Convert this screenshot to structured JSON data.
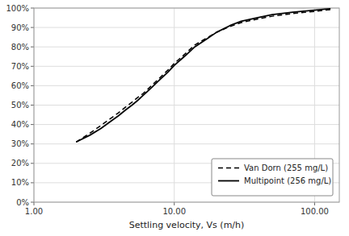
{
  "chart_data": {
    "type": "line",
    "xlabel": "Settling velocity, Vs (m/h)",
    "x": [
      2.0,
      2.5,
      3.0,
      3.5,
      4.0,
      4.5,
      5.0,
      5.5,
      6.0,
      7.0,
      8.0,
      9.0,
      10.0,
      12.0,
      14.0,
      17.0,
      20.0,
      25.0,
      30.0,
      40.0,
      50.0,
      70.0,
      100.0,
      130.0
    ],
    "series": [
      {
        "name": "Van Dorn (255 mg/L)",
        "color": "#000000",
        "line_style": "dashed",
        "values": [
          0.31,
          0.355,
          0.395,
          0.43,
          0.46,
          0.49,
          0.515,
          0.54,
          0.56,
          0.605,
          0.645,
          0.68,
          0.715,
          0.765,
          0.81,
          0.845,
          0.875,
          0.905,
          0.925,
          0.945,
          0.958,
          0.972,
          0.983,
          0.992
        ]
      },
      {
        "name": "Multipoint (256 mg/L)",
        "color": "#000000",
        "line_style": "solid",
        "values": [
          0.31,
          0.345,
          0.38,
          0.415,
          0.445,
          0.475,
          0.5,
          0.525,
          0.55,
          0.595,
          0.635,
          0.67,
          0.705,
          0.755,
          0.8,
          0.84,
          0.875,
          0.91,
          0.932,
          0.952,
          0.966,
          0.979,
          0.989,
          0.997
        ]
      }
    ],
    "log": "x",
    "xlim": [
      1.0,
      150.0
    ],
    "ylim": [
      0.0,
      1.0
    ],
    "xticks": [
      {
        "value": 1,
        "label": "1.00"
      },
      {
        "value": 10,
        "label": "10.00"
      },
      {
        "value": 100,
        "label": "100.00"
      }
    ],
    "yticks": [
      {
        "value": 0.0,
        "label": "0%"
      },
      {
        "value": 0.1,
        "label": "10%"
      },
      {
        "value": 0.2,
        "label": "20%"
      },
      {
        "value": 0.3,
        "label": "30%"
      },
      {
        "value": 0.4,
        "label": "40%"
      },
      {
        "value": 0.5,
        "label": "50%"
      },
      {
        "value": 0.6,
        "label": "60%"
      },
      {
        "value": 0.7,
        "label": "70%"
      },
      {
        "value": 0.8,
        "label": "80%"
      },
      {
        "value": 0.9,
        "label": "90%"
      },
      {
        "value": 1.0,
        "label": "100%"
      }
    ],
    "grid": true,
    "legend": "lower right"
  }
}
